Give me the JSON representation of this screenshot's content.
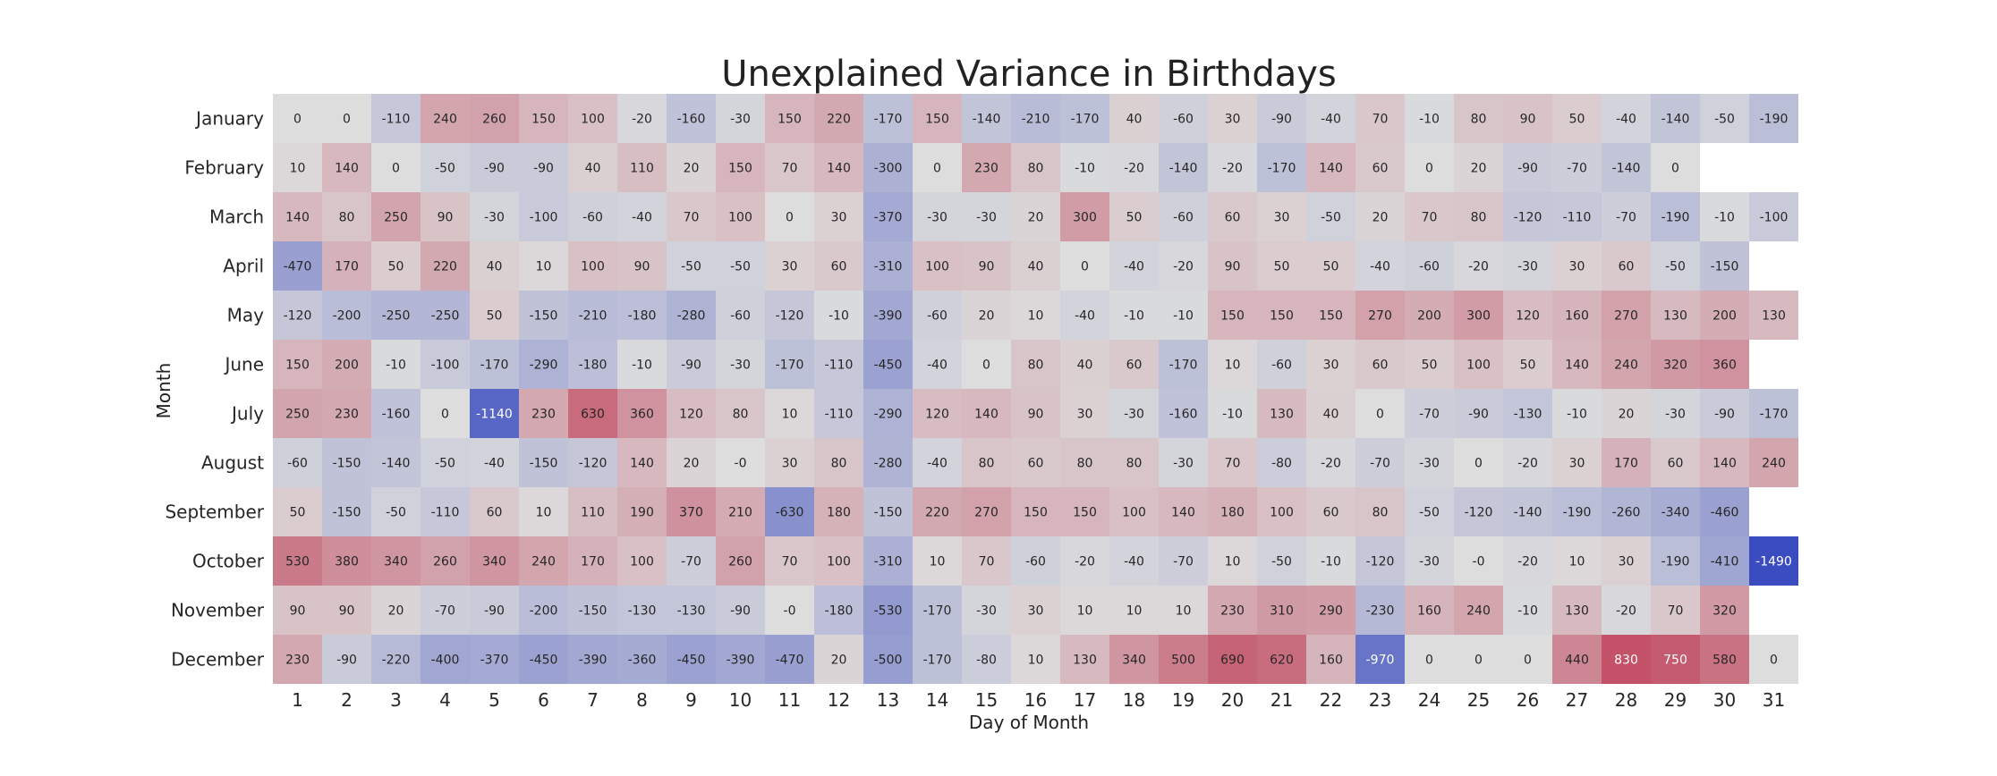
{
  "chart_data": {
    "type": "heatmap",
    "title": "Unexplained Variance in Birthdays",
    "xlabel": "Day of Month",
    "ylabel": "Month",
    "x_categories": [
      "1",
      "2",
      "3",
      "4",
      "5",
      "6",
      "7",
      "8",
      "9",
      "10",
      "11",
      "12",
      "13",
      "14",
      "15",
      "16",
      "17",
      "18",
      "19",
      "20",
      "21",
      "22",
      "23",
      "24",
      "25",
      "26",
      "27",
      "28",
      "29",
      "30",
      "31"
    ],
    "y_categories": [
      "January",
      "February",
      "March",
      "April",
      "May",
      "June",
      "July",
      "August",
      "September",
      "October",
      "November",
      "December"
    ],
    "colormap": "coolwarm",
    "value_range": [
      -1490,
      1490
    ],
    "colors": {
      "negative_extreme": "#3b4cc0",
      "neutral": "#dddddd",
      "positive_extreme": "#b40426"
    },
    "values": [
      [
        "0",
        "0",
        "-110",
        "240",
        "260",
        "150",
        "100",
        "-20",
        "-160",
        "-30",
        "150",
        "220",
        "-170",
        "150",
        "-140",
        "-210",
        "-170",
        "40",
        "-60",
        "30",
        "-90",
        "-40",
        "70",
        "-10",
        "80",
        "90",
        "50",
        "-40",
        "-140",
        "-50",
        "-190"
      ],
      [
        "10",
        "140",
        "0",
        "-50",
        "-90",
        "-90",
        "40",
        "110",
        "20",
        "150",
        "70",
        "140",
        "-300",
        "0",
        "230",
        "80",
        "-10",
        "-20",
        "-140",
        "-20",
        "-170",
        "140",
        "60",
        "0",
        "20",
        "-90",
        "-70",
        "-140",
        "0",
        null,
        null
      ],
      [
        "140",
        "80",
        "250",
        "90",
        "-30",
        "-100",
        "-60",
        "-40",
        "70",
        "100",
        "0",
        "30",
        "-370",
        "-30",
        "-30",
        "20",
        "300",
        "50",
        "-60",
        "60",
        "30",
        "-50",
        "20",
        "70",
        "80",
        "-120",
        "-110",
        "-70",
        "-190",
        "-10",
        "-100"
      ],
      [
        "-470",
        "170",
        "50",
        "220",
        "40",
        "10",
        "100",
        "90",
        "-50",
        "-50",
        "30",
        "60",
        "-310",
        "100",
        "90",
        "40",
        "0",
        "-40",
        "-20",
        "90",
        "50",
        "50",
        "-40",
        "-60",
        "-20",
        "-30",
        "30",
        "60",
        "-50",
        "-150",
        null
      ],
      [
        "-120",
        "-200",
        "-250",
        "-250",
        "50",
        "-150",
        "-210",
        "-180",
        "-280",
        "-60",
        "-120",
        "-10",
        "-390",
        "-60",
        "20",
        "10",
        "-40",
        "-10",
        "-10",
        "150",
        "150",
        "150",
        "270",
        "200",
        "300",
        "120",
        "160",
        "270",
        "130",
        "200",
        "130"
      ],
      [
        "150",
        "200",
        "-10",
        "-100",
        "-170",
        "-290",
        "-180",
        "-10",
        "-90",
        "-30",
        "-170",
        "-110",
        "-450",
        "-40",
        "0",
        "80",
        "40",
        "60",
        "-170",
        "10",
        "-60",
        "30",
        "60",
        "50",
        "100",
        "50",
        "140",
        "240",
        "320",
        "360",
        null
      ],
      [
        "250",
        "230",
        "-160",
        "0",
        "-1140",
        "230",
        "630",
        "360",
        "120",
        "80",
        "10",
        "-110",
        "-290",
        "120",
        "140",
        "90",
        "30",
        "-30",
        "-160",
        "-10",
        "130",
        "40",
        "0",
        "-70",
        "-90",
        "-130",
        "-10",
        "20",
        "-30",
        "-90",
        "-170"
      ],
      [
        "-60",
        "-150",
        "-140",
        "-50",
        "-40",
        "-150",
        "-120",
        "140",
        "20",
        "-0",
        "30",
        "80",
        "-280",
        "-40",
        "80",
        "60",
        "80",
        "80",
        "-30",
        "70",
        "-80",
        "-20",
        "-70",
        "-30",
        "0",
        "-20",
        "30",
        "170",
        "60",
        "140",
        "240"
      ],
      [
        "50",
        "-150",
        "-50",
        "-110",
        "60",
        "10",
        "110",
        "190",
        "370",
        "210",
        "-630",
        "180",
        "-150",
        "220",
        "270",
        "150",
        "150",
        "100",
        "140",
        "180",
        "100",
        "60",
        "80",
        "-50",
        "-120",
        "-140",
        "-190",
        "-260",
        "-340",
        "-460",
        null
      ],
      [
        "530",
        "380",
        "340",
        "260",
        "340",
        "240",
        "170",
        "100",
        "-70",
        "260",
        "70",
        "100",
        "-310",
        "10",
        "70",
        "-60",
        "-20",
        "-40",
        "-70",
        "10",
        "-50",
        "-10",
        "-120",
        "-30",
        "-0",
        "-20",
        "10",
        "30",
        "-190",
        "-410",
        "-1490"
      ],
      [
        "90",
        "90",
        "20",
        "-70",
        "-90",
        "-200",
        "-150",
        "-130",
        "-130",
        "-90",
        "-0",
        "-180",
        "-530",
        "-170",
        "-30",
        "30",
        "10",
        "10",
        "10",
        "230",
        "310",
        "290",
        "-230",
        "160",
        "240",
        "-10",
        "130",
        "-20",
        "70",
        "320",
        null
      ],
      [
        "230",
        "-90",
        "-220",
        "-400",
        "-370",
        "-450",
        "-390",
        "-360",
        "-450",
        "-390",
        "-470",
        "20",
        "-500",
        "-170",
        "-80",
        "10",
        "130",
        "340",
        "500",
        "690",
        "620",
        "160",
        "-970",
        "0",
        "0",
        "0",
        "440",
        "830",
        "750",
        "580",
        "0"
      ]
    ]
  }
}
